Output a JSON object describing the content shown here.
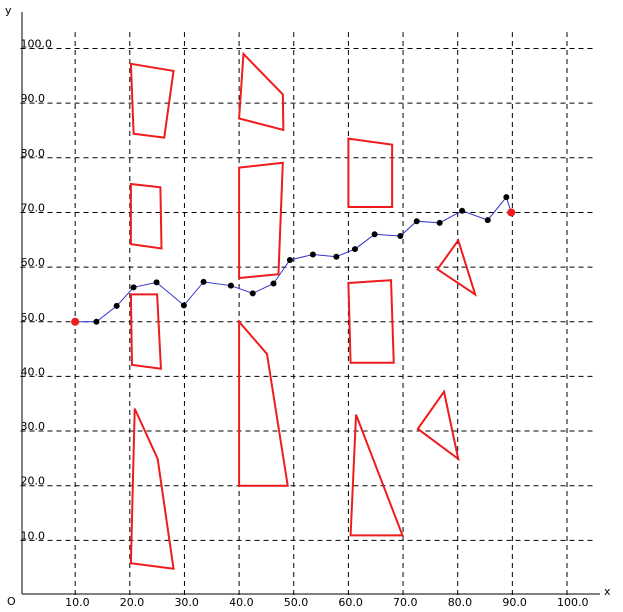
{
  "chart_data": {
    "type": "scatter",
    "title": "",
    "xlabel": "x",
    "ylabel": "y",
    "origin_label": "O",
    "xlim": [
      0,
      105
    ],
    "ylim": [
      0,
      105
    ],
    "grid": true,
    "x_ticks": [
      "10.0",
      "20.0",
      "30.0",
      "40.0",
      "50.0",
      "60.0",
      "70.0",
      "80.0",
      "90.0",
      "100.0"
    ],
    "y_ticks": [
      "10.0",
      "20.0",
      "30.0",
      "40.0",
      "50.0",
      "60.0",
      "70.0",
      "80.0",
      "90.0",
      "100.0"
    ],
    "obstacle_color": "#ee1c1c",
    "path_color": "#3333cc",
    "point_color": "#000000",
    "endpoint_color": "#ee1c1c",
    "obstacles": [
      [
        [
          20.2,
          97.2
        ],
        [
          28.0,
          95.9
        ],
        [
          26.3,
          83.7
        ],
        [
          20.7,
          84.4
        ]
      ],
      [
        [
          20.2,
          75.2
        ],
        [
          25.6,
          74.6
        ],
        [
          25.8,
          63.4
        ],
        [
          20.2,
          64.2
        ]
      ],
      [
        [
          20.2,
          55.0
        ],
        [
          25.0,
          55.0
        ],
        [
          25.7,
          41.4
        ],
        [
          20.4,
          42.1
        ]
      ],
      [
        [
          20.9,
          34.1
        ],
        [
          25.1,
          24.9
        ],
        [
          28.0,
          4.8
        ],
        [
          20.2,
          5.8
        ]
      ],
      [
        [
          40.8,
          99.0
        ],
        [
          48.0,
          91.6
        ],
        [
          48.1,
          85.1
        ],
        [
          40.0,
          87.2
        ]
      ],
      [
        [
          40.0,
          78.2
        ],
        [
          48.0,
          79.1
        ],
        [
          47.2,
          58.7
        ],
        [
          40.0,
          58.0
        ]
      ],
      [
        [
          40.0,
          50.0
        ],
        [
          45.1,
          44.1
        ],
        [
          48.9,
          20.0
        ],
        [
          40.0,
          20.0
        ]
      ],
      [
        [
          60.0,
          83.5
        ],
        [
          68.0,
          82.4
        ],
        [
          68.0,
          71.0
        ],
        [
          60.0,
          71.0
        ]
      ],
      [
        [
          60.0,
          57.1
        ],
        [
          67.8,
          57.6
        ],
        [
          68.3,
          42.5
        ],
        [
          60.4,
          42.5
        ]
      ],
      [
        [
          61.4,
          33.0
        ],
        [
          69.9,
          10.9
        ],
        [
          60.4,
          10.9
        ]
      ],
      [
        [
          76.3,
          59.6
        ],
        [
          80.1,
          64.9
        ],
        [
          83.2,
          55.0
        ]
      ],
      [
        [
          72.7,
          30.4
        ],
        [
          77.5,
          37.2
        ],
        [
          80.1,
          24.9
        ]
      ]
    ],
    "path": [
      [
        10.0,
        50.0
      ],
      [
        13.9,
        50.0
      ],
      [
        17.6,
        52.9
      ],
      [
        20.7,
        56.3
      ],
      [
        24.9,
        57.2
      ],
      [
        29.9,
        53.0
      ],
      [
        33.5,
        57.3
      ],
      [
        38.5,
        56.6
      ],
      [
        42.5,
        55.2
      ],
      [
        46.3,
        57.0
      ],
      [
        49.3,
        61.3
      ],
      [
        53.5,
        62.3
      ],
      [
        57.8,
        61.9
      ],
      [
        61.2,
        63.3
      ],
      [
        64.8,
        66.0
      ],
      [
        69.5,
        65.7
      ],
      [
        72.5,
        68.4
      ],
      [
        76.7,
        68.1
      ],
      [
        80.8,
        70.3
      ],
      [
        85.5,
        68.6
      ],
      [
        88.9,
        72.8
      ],
      [
        89.8,
        70.0
      ]
    ],
    "start": [
      10.0,
      50.0
    ],
    "goal": [
      89.8,
      70.0
    ]
  }
}
